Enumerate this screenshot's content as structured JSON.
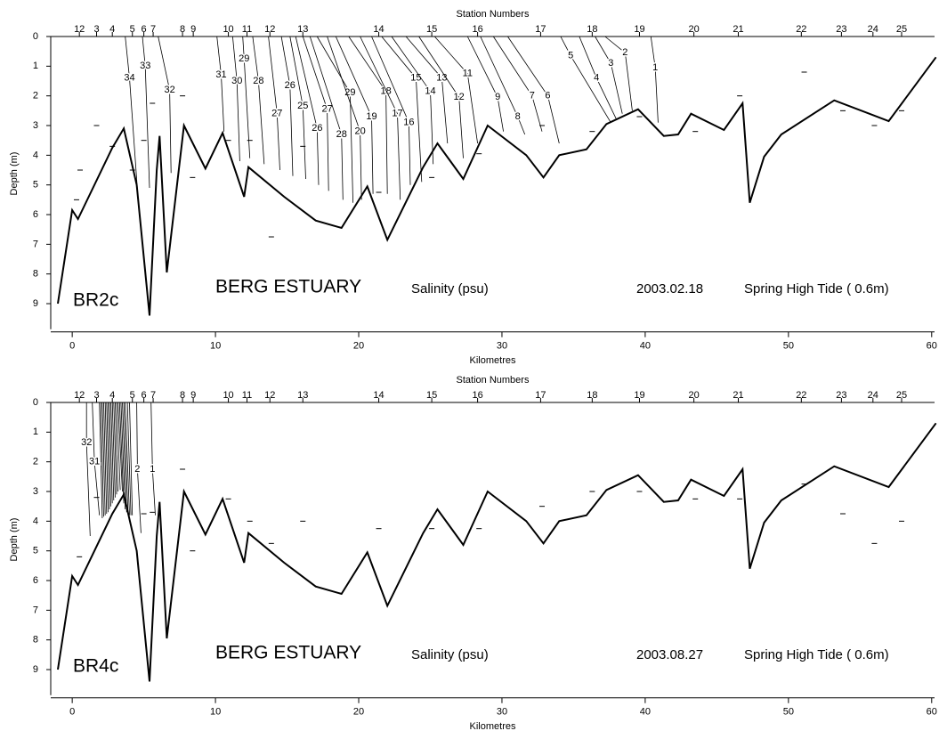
{
  "chart_data": [
    {
      "type": "contour",
      "panel_label": "BR2c",
      "title": "BERG ESTUARY",
      "variable": "Salinity (psu)",
      "date": "2003.02.18",
      "tide": "Spring High Tide ( 0.6m)",
      "top_axis_label": "Station Numbers",
      "xlabel": "Kilometres",
      "ylabel": "Depth (m)",
      "xlim": [
        -1.5,
        60.2
      ],
      "ylim": [
        0,
        9.95
      ],
      "xticks": [
        0,
        10,
        20,
        30,
        40,
        50,
        60
      ],
      "yticks": [
        0,
        1,
        2,
        3,
        4,
        5,
        6,
        7,
        8,
        9
      ],
      "stations": {
        "labels": [
          "12",
          "3",
          "4",
          "5",
          "6",
          "7",
          "8",
          "9",
          "10",
          "11",
          "12",
          "13",
          "14",
          "15",
          "16",
          "17",
          "18",
          "19",
          "20",
          "21",
          "22",
          "23",
          "24",
          "25"
        ],
        "x": [
          0.5,
          1.7,
          2.8,
          4.2,
          5.0,
          5.65,
          7.7,
          8.45,
          10.9,
          12.2,
          13.8,
          16.1,
          21.4,
          25.1,
          28.3,
          32.7,
          36.3,
          39.6,
          43.4,
          46.5,
          50.9,
          53.7,
          55.9,
          57.9
        ]
      },
      "bottom": {
        "x": [
          -1,
          0,
          0.4,
          2.8,
          3.6,
          4.5,
          5.4,
          5.9,
          6.1,
          6.6,
          7.8,
          9.3,
          10.5,
          12,
          12.3,
          14.8,
          17,
          18.8,
          20.6,
          22,
          24.5,
          25.5,
          27.3,
          29,
          31.7,
          32.9,
          34,
          35.9,
          37.3,
          39.5,
          41.3,
          42.3,
          43.2,
          45.5,
          46.8,
          47.3,
          48.3,
          49.5,
          53.2,
          57,
          60.3
        ],
        "y": [
          9,
          5.85,
          6.15,
          3.75,
          3.1,
          5.0,
          9.4,
          4.5,
          3.35,
          7.95,
          3.0,
          4.45,
          3.25,
          5.4,
          4.4,
          5.4,
          6.2,
          6.45,
          5.05,
          6.85,
          4.4,
          3.6,
          4.8,
          3.0,
          4.0,
          4.75,
          4.0,
          3.8,
          2.95,
          2.45,
          3.35,
          3.3,
          2.6,
          3.15,
          2.25,
          5.6,
          4.05,
          3.3,
          2.15,
          2.85,
          0.7
        ]
      },
      "contours": [
        {
          "level": 34,
          "x": [
            3.7,
            4.0,
            4.6
          ],
          "y": [
            0,
            1.4,
            5.5
          ]
        },
        {
          "level": 33,
          "x": [
            4.9,
            5.1,
            5.4
          ],
          "y": [
            0,
            1.0,
            5.1
          ]
        },
        {
          "level": 32,
          "x": [
            6.0,
            6.8,
            6.9
          ],
          "y": [
            0,
            1.8,
            4.6
          ]
        },
        {
          "level": 31,
          "x": [
            10.1,
            10.4,
            10.6
          ],
          "y": [
            0,
            1.3,
            3.2
          ]
        },
        {
          "level": 30,
          "x": [
            11.2,
            11.5,
            11.7
          ],
          "y": [
            0,
            1.5,
            4.2
          ]
        },
        {
          "level": 29,
          "x": [
            11.9,
            12.0,
            12.4
          ],
          "y": [
            0,
            0.75,
            4.1
          ]
        },
        {
          "level": 28,
          "x": [
            12.6,
            13.0,
            13.4
          ],
          "y": [
            0,
            1.5,
            4.3
          ]
        },
        {
          "level": 27,
          "x": [
            13.7,
            14.3,
            14.5
          ],
          "y": [
            0,
            2.6,
            4.5
          ]
        },
        {
          "level": 26,
          "x": [
            14.6,
            15.2,
            15.4
          ],
          "y": [
            0,
            1.65,
            4.7
          ]
        },
        {
          "level": 25,
          "x": [
            15.2,
            16.1,
            16.3
          ],
          "y": [
            0,
            2.35,
            4.8
          ]
        },
        {
          "level": 26,
          "x": [
            15.6,
            17.1,
            17.2
          ],
          "y": [
            0,
            3.1,
            5.0
          ]
        },
        {
          "level": 27,
          "x": [
            16.1,
            17.8,
            17.9
          ],
          "y": [
            0,
            2.45,
            5.2
          ]
        },
        {
          "level": 28,
          "x": [
            16.6,
            18.8,
            18.9
          ],
          "y": [
            0,
            3.3,
            5.5
          ]
        },
        {
          "level": 29,
          "x": [
            17.1,
            19.4,
            19.6
          ],
          "y": [
            0,
            1.9,
            5.6
          ]
        },
        {
          "level": 20,
          "x": [
            17.8,
            20.1,
            20.2
          ],
          "y": [
            0,
            3.2,
            5.5
          ]
        },
        {
          "level": 19,
          "x": [
            18.4,
            20.9,
            21.0
          ],
          "y": [
            0,
            2.7,
            5.3
          ]
        },
        {
          "level": 18,
          "x": [
            19.3,
            21.9,
            22.0
          ],
          "y": [
            0,
            1.85,
            5.3
          ]
        },
        {
          "level": 17,
          "x": [
            20.1,
            22.7,
            22.9
          ],
          "y": [
            0,
            2.6,
            5.5
          ]
        },
        {
          "level": 16,
          "x": [
            20.9,
            23.5,
            23.6
          ],
          "y": [
            0,
            2.9,
            5.0
          ]
        },
        {
          "level": 15,
          "x": [
            21.6,
            24.0,
            24.4
          ],
          "y": [
            0,
            1.4,
            4.9
          ]
        },
        {
          "level": 14,
          "x": [
            22.3,
            25.0,
            25.2
          ],
          "y": [
            0,
            1.85,
            4.3
          ]
        },
        {
          "level": 13,
          "x": [
            23.3,
            25.8,
            26.2
          ],
          "y": [
            0,
            1.4,
            3.6
          ]
        },
        {
          "level": 12,
          "x": [
            24.2,
            27.0,
            27.3
          ],
          "y": [
            0,
            2.05,
            4.1
          ]
        },
        {
          "level": 11,
          "x": [
            25.3,
            27.6,
            28.3
          ],
          "y": [
            0,
            1.25,
            3.6
          ]
        },
        {
          "level": 9,
          "x": [
            27.6,
            29.7,
            30.1
          ],
          "y": [
            0,
            2.05,
            3.2
          ]
        },
        {
          "level": 8,
          "x": [
            28.5,
            31.1,
            31.6
          ],
          "y": [
            0,
            2.7,
            3.3
          ]
        },
        {
          "level": 7,
          "x": [
            29.4,
            32.1,
            32.8
          ],
          "y": [
            0,
            2.0,
            3.2
          ]
        },
        {
          "level": 6,
          "x": [
            30.4,
            33.2,
            34.0
          ],
          "y": [
            0,
            2.0,
            3.6
          ]
        },
        {
          "level": 5,
          "x": [
            34.1,
            34.8,
            37.6
          ],
          "y": [
            0,
            0.65,
            2.9
          ]
        },
        {
          "level": 4,
          "x": [
            35.4,
            36.6,
            38.0
          ],
          "y": [
            0,
            1.4,
            2.8
          ]
        },
        {
          "level": 3,
          "x": [
            36.5,
            37.6,
            38.4
          ],
          "y": [
            0,
            0.9,
            2.6
          ]
        },
        {
          "level": 2,
          "x": [
            37.2,
            38.6,
            39.1
          ],
          "y": [
            0,
            0.55,
            2.5
          ]
        },
        {
          "level": 1,
          "x": [
            40.4,
            40.7,
            40.9
          ],
          "y": [
            0,
            1.05,
            2.9
          ]
        }
      ],
      "samples": {
        "x": [
          0.55,
          0.3,
          1.7,
          2.8,
          4.2,
          5.0,
          5.6,
          7.7,
          8.4,
          10.9,
          12.4,
          13.9,
          16.1,
          21.4,
          25.1,
          28.4,
          32.8,
          36.3,
          39.6,
          43.5,
          46.6,
          51.1,
          53.8,
          56.0,
          57.9
        ],
        "y": [
          4.5,
          5.5,
          3.0,
          3.7,
          4.5,
          3.5,
          2.25,
          2.0,
          4.75,
          3.5,
          3.5,
          6.75,
          3.7,
          5.25,
          4.75,
          3.95,
          3.0,
          3.2,
          2.7,
          3.2,
          2.0,
          1.2,
          2.5,
          3.0,
          2.5
        ]
      }
    },
    {
      "type": "contour",
      "panel_label": "BR4c",
      "title": "BERG ESTUARY",
      "variable": "Salinity (psu)",
      "date": "2003.08.27",
      "tide": "Spring High Tide ( 0.6m)",
      "top_axis_label": "Station Numbers",
      "xlabel": "Kilometres",
      "ylabel": "Depth (m)",
      "xlim": [
        -1.5,
        60.2
      ],
      "ylim": [
        0,
        9.95
      ],
      "xticks": [
        0,
        10,
        20,
        30,
        40,
        50,
        60
      ],
      "yticks": [
        0,
        1,
        2,
        3,
        4,
        5,
        6,
        7,
        8,
        9
      ],
      "stations": {
        "labels": [
          "12",
          "3",
          "4",
          "5",
          "6",
          "7",
          "8",
          "9",
          "10",
          "11",
          "12",
          "13",
          "14",
          "15",
          "16",
          "17",
          "18",
          "19",
          "20",
          "21",
          "22",
          "23",
          "24",
          "25"
        ],
        "x": [
          0.5,
          1.7,
          2.8,
          4.2,
          5.0,
          5.65,
          7.7,
          8.45,
          10.9,
          12.2,
          13.8,
          16.1,
          21.4,
          25.1,
          28.3,
          32.7,
          36.3,
          39.6,
          43.4,
          46.5,
          50.9,
          53.7,
          55.9,
          57.9
        ]
      },
      "bottom": {
        "x": [
          -1,
          0,
          0.4,
          2.8,
          3.6,
          4.5,
          5.4,
          5.9,
          6.1,
          6.6,
          7.8,
          9.3,
          10.5,
          12,
          12.3,
          14.8,
          17,
          18.8,
          20.6,
          22,
          24.5,
          25.5,
          27.3,
          29,
          31.7,
          32.9,
          34,
          35.9,
          37.3,
          39.5,
          41.3,
          42.3,
          43.2,
          45.5,
          46.8,
          47.3,
          48.3,
          49.5,
          53.2,
          57,
          60.3
        ],
        "y": [
          9,
          5.85,
          6.15,
          3.75,
          3.1,
          5.0,
          9.4,
          4.5,
          3.35,
          7.95,
          3.0,
          4.45,
          3.25,
          5.4,
          4.4,
          5.4,
          6.2,
          6.45,
          5.05,
          6.85,
          4.4,
          3.6,
          4.8,
          3.0,
          4.0,
          4.75,
          4.0,
          3.8,
          2.95,
          2.45,
          3.35,
          3.3,
          2.6,
          3.15,
          2.25,
          5.6,
          4.05,
          3.3,
          2.15,
          2.85,
          0.7
        ]
      },
      "contours": [
        {
          "level": 32,
          "x": [
            1.0,
            1.0,
            1.25
          ],
          "y": [
            0,
            1.35,
            4.5
          ]
        },
        {
          "level": 31,
          "x": [
            1.4,
            1.55,
            1.9
          ],
          "y": [
            0,
            2.0,
            3.8
          ]
        },
        {
          "level": 2,
          "x": [
            4.5,
            4.55,
            4.8
          ],
          "y": [
            0,
            2.25,
            4.4
          ]
        },
        {
          "level": 1,
          "x": [
            5.5,
            5.6,
            5.8
          ],
          "y": [
            0,
            2.25,
            3.8
          ]
        }
      ],
      "cluster": [
        {
          "x": [
            1.9,
            2.1
          ],
          "y": [
            0,
            3.9
          ]
        },
        {
          "x": [
            2.0,
            2.2
          ],
          "y": [
            0,
            3.85
          ]
        },
        {
          "x": [
            2.1,
            2.3
          ],
          "y": [
            0,
            3.8
          ]
        },
        {
          "x": [
            2.2,
            2.4
          ],
          "y": [
            0,
            3.75
          ]
        },
        {
          "x": [
            2.3,
            2.5
          ],
          "y": [
            0,
            3.7
          ]
        },
        {
          "x": [
            2.4,
            2.6
          ],
          "y": [
            0,
            3.6
          ]
        },
        {
          "x": [
            2.5,
            2.7
          ],
          "y": [
            0,
            3.5
          ]
        },
        {
          "x": [
            2.6,
            2.8
          ],
          "y": [
            0,
            3.4
          ]
        },
        {
          "x": [
            2.7,
            2.9
          ],
          "y": [
            0,
            3.3
          ]
        },
        {
          "x": [
            2.8,
            3.0
          ],
          "y": [
            0,
            3.2
          ]
        },
        {
          "x": [
            2.9,
            3.1
          ],
          "y": [
            0,
            3.1
          ]
        },
        {
          "x": [
            3.0,
            3.2
          ],
          "y": [
            0,
            3.0
          ]
        },
        {
          "x": [
            3.1,
            3.35
          ],
          "y": [
            0,
            2.95
          ]
        },
        {
          "x": [
            3.2,
            3.5
          ],
          "y": [
            0,
            3.0
          ]
        },
        {
          "x": [
            3.3,
            3.6
          ],
          "y": [
            0,
            3.4
          ]
        },
        {
          "x": [
            3.4,
            3.7
          ],
          "y": [
            0,
            3.6
          ]
        },
        {
          "x": [
            3.5,
            3.8
          ],
          "y": [
            0,
            3.7
          ]
        },
        {
          "x": [
            3.6,
            3.9
          ],
          "y": [
            0,
            3.8
          ]
        },
        {
          "x": [
            3.7,
            4.0
          ],
          "y": [
            0,
            3.8
          ]
        },
        {
          "x": [
            3.85,
            4.1
          ],
          "y": [
            0,
            3.8
          ]
        },
        {
          "x": [
            4.0,
            4.2
          ],
          "y": [
            0,
            3.8
          ]
        }
      ],
      "samples": {
        "x": [
          0.5,
          1.7,
          5.0,
          5.6,
          7.7,
          8.4,
          10.9,
          12.4,
          13.9,
          16.1,
          21.4,
          25.1,
          28.4,
          32.8,
          36.3,
          39.6,
          43.5,
          46.6,
          51.1,
          53.8,
          56.0,
          57.9
        ],
        "y": [
          5.2,
          3.2,
          3.75,
          3.7,
          2.25,
          5.0,
          3.25,
          4.0,
          4.75,
          4.0,
          4.25,
          4.25,
          4.25,
          3.5,
          3.0,
          3.0,
          3.25,
          3.25,
          2.75,
          3.75,
          4.75,
          4.0
        ]
      }
    }
  ]
}
